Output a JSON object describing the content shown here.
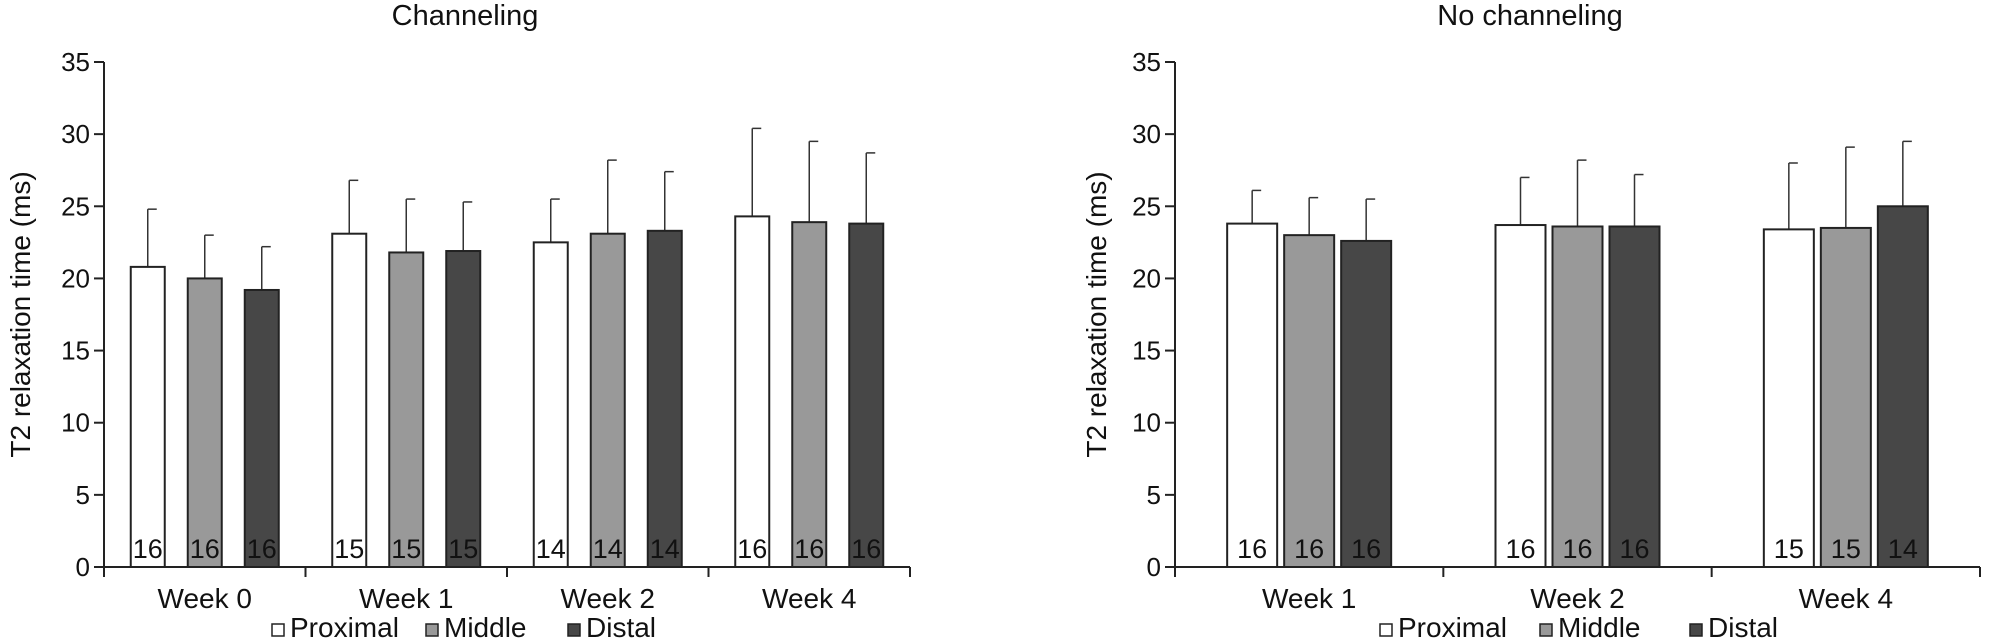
{
  "chart_data": [
    {
      "type": "bar",
      "title": "Channeling",
      "ylabel": "T2 relaxation time (ms)",
      "ylim": [
        0,
        35
      ],
      "yticks": [
        0,
        5,
        10,
        15,
        20,
        25,
        30,
        35
      ],
      "grid": false,
      "error_bars": true,
      "legend_placement": "bottom",
      "categories": [
        "Week 0",
        "Week 1",
        "Week 2",
        "Week 4"
      ],
      "series": [
        {
          "name": "Proximal",
          "color": "#ffffff",
          "values": [
            20.8,
            23.1,
            22.5,
            24.3
          ],
          "errors": [
            4.0,
            3.7,
            3.0,
            6.1
          ],
          "n": [
            "16",
            "15",
            "14",
            "16"
          ]
        },
        {
          "name": "Middle",
          "color": "#999999",
          "values": [
            20.0,
            21.8,
            23.1,
            23.9
          ],
          "errors": [
            3.0,
            3.7,
            5.1,
            5.6
          ],
          "n": [
            "16",
            "15",
            "14",
            "16"
          ]
        },
        {
          "name": "Distal",
          "color": "#474747",
          "values": [
            19.2,
            21.9,
            23.3,
            23.8
          ],
          "errors": [
            3.0,
            3.4,
            4.1,
            4.9
          ],
          "n": [
            "16",
            "15",
            "14",
            "16"
          ]
        }
      ]
    },
    {
      "type": "bar",
      "title": "No channeling",
      "ylabel": "T2 relaxation time (ms)",
      "ylim": [
        0,
        35
      ],
      "yticks": [
        0,
        5,
        10,
        15,
        20,
        25,
        30,
        35
      ],
      "grid": false,
      "error_bars": true,
      "legend_placement": "bottom",
      "categories": [
        "Week 1",
        "Week 2",
        "Week 4"
      ],
      "series": [
        {
          "name": "Proximal",
          "color": "#ffffff",
          "values": [
            23.8,
            23.7,
            23.4
          ],
          "errors": [
            2.3,
            3.3,
            4.6
          ],
          "n": [
            "16",
            "16",
            "15"
          ]
        },
        {
          "name": "Middle",
          "color": "#999999",
          "values": [
            23.0,
            23.6,
            23.5
          ],
          "errors": [
            2.6,
            4.6,
            5.6
          ],
          "n": [
            "16",
            "16",
            "15"
          ]
        },
        {
          "name": "Distal",
          "color": "#474747",
          "values": [
            22.6,
            23.6,
            25.0
          ],
          "errors": [
            2.9,
            3.6,
            4.5
          ],
          "n": [
            "16",
            "16",
            "14"
          ]
        }
      ]
    }
  ]
}
